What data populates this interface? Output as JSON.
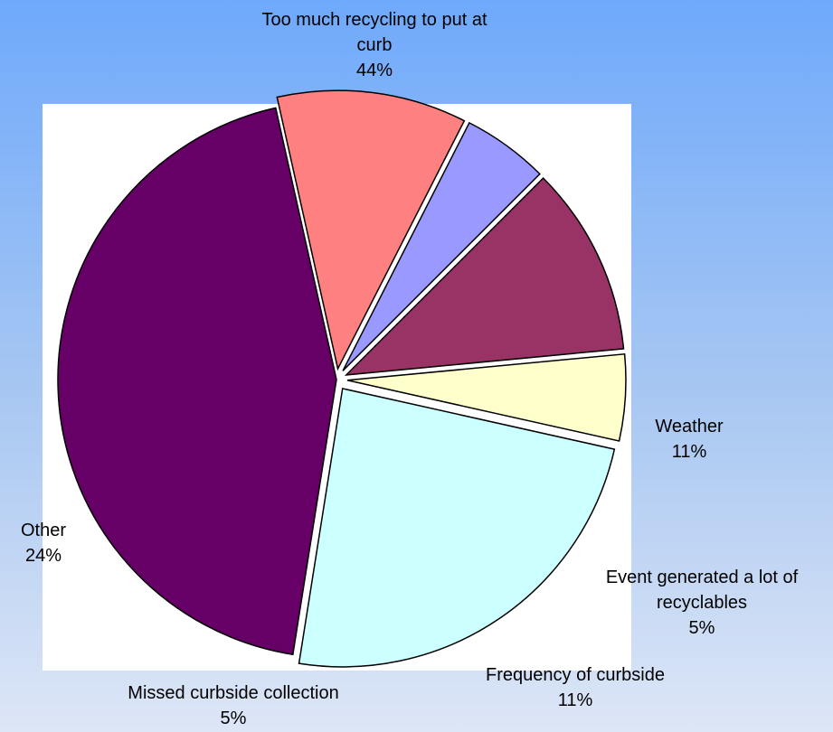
{
  "chart_data": {
    "type": "pie",
    "title": "",
    "slices": [
      {
        "label_lines": [
          "Too much recycling to put at",
          "curb"
        ],
        "pct_label": "44%",
        "value": 44,
        "color": "#660066",
        "explode": 0
      },
      {
        "label_lines": [
          "Weather"
        ],
        "pct_label": "11%",
        "value": 11,
        "color": "#ff8080",
        "explode": 1
      },
      {
        "label_lines": [
          "Event generated a lot of",
          "recyclables"
        ],
        "pct_label": "5%",
        "value": 5,
        "color": "#9999ff",
        "explode": 1
      },
      {
        "label_lines": [
          "Frequency of curbside"
        ],
        "pct_label": "11%",
        "value": 11,
        "color": "#993366",
        "explode": 1
      },
      {
        "label_lines": [
          "Missed curbside collection"
        ],
        "pct_label": "5%",
        "value": 5,
        "color": "#ffffcc",
        "explode": 1
      },
      {
        "label_lines": [
          "Other"
        ],
        "pct_label": "24%",
        "value": 24,
        "color": "#ccffff",
        "explode": 1
      }
    ],
    "legend": "none",
    "background_colors": {
      "top": "#6fa9fb",
      "bottom": "#dde6f6",
      "plot_area": "#ffffff"
    }
  }
}
